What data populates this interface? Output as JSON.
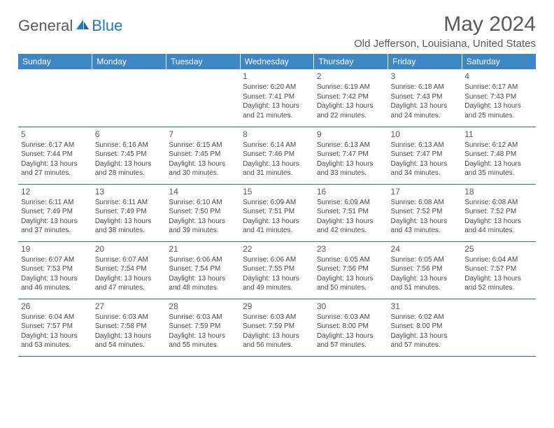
{
  "logo": {
    "part1": "General",
    "part2": "Blue"
  },
  "title": "May 2024",
  "location": "Old Jefferson, Louisiana, United States",
  "colors": {
    "header_bg": "#3d87c7",
    "header_text": "#ffffff",
    "cell_border": "#2f6ea3",
    "text": "#595959",
    "logo_gray": "#5a5a5a",
    "logo_blue": "#2678bf"
  },
  "day_headers": [
    "Sunday",
    "Monday",
    "Tuesday",
    "Wednesday",
    "Thursday",
    "Friday",
    "Saturday"
  ],
  "weeks": [
    [
      null,
      null,
      null,
      {
        "n": "1",
        "sr": "6:20 AM",
        "ss": "7:41 PM",
        "dl": "13 hours and 21 minutes."
      },
      {
        "n": "2",
        "sr": "6:19 AM",
        "ss": "7:42 PM",
        "dl": "13 hours and 22 minutes."
      },
      {
        "n": "3",
        "sr": "6:18 AM",
        "ss": "7:43 PM",
        "dl": "13 hours and 24 minutes."
      },
      {
        "n": "4",
        "sr": "6:17 AM",
        "ss": "7:43 PM",
        "dl": "13 hours and 25 minutes."
      }
    ],
    [
      {
        "n": "5",
        "sr": "6:17 AM",
        "ss": "7:44 PM",
        "dl": "13 hours and 27 minutes."
      },
      {
        "n": "6",
        "sr": "6:16 AM",
        "ss": "7:45 PM",
        "dl": "13 hours and 28 minutes."
      },
      {
        "n": "7",
        "sr": "6:15 AM",
        "ss": "7:45 PM",
        "dl": "13 hours and 30 minutes."
      },
      {
        "n": "8",
        "sr": "6:14 AM",
        "ss": "7:46 PM",
        "dl": "13 hours and 31 minutes."
      },
      {
        "n": "9",
        "sr": "6:13 AM",
        "ss": "7:47 PM",
        "dl": "13 hours and 33 minutes."
      },
      {
        "n": "10",
        "sr": "6:13 AM",
        "ss": "7:47 PM",
        "dl": "13 hours and 34 minutes."
      },
      {
        "n": "11",
        "sr": "6:12 AM",
        "ss": "7:48 PM",
        "dl": "13 hours and 35 minutes."
      }
    ],
    [
      {
        "n": "12",
        "sr": "6:11 AM",
        "ss": "7:49 PM",
        "dl": "13 hours and 37 minutes."
      },
      {
        "n": "13",
        "sr": "6:11 AM",
        "ss": "7:49 PM",
        "dl": "13 hours and 38 minutes."
      },
      {
        "n": "14",
        "sr": "6:10 AM",
        "ss": "7:50 PM",
        "dl": "13 hours and 39 minutes."
      },
      {
        "n": "15",
        "sr": "6:09 AM",
        "ss": "7:51 PM",
        "dl": "13 hours and 41 minutes."
      },
      {
        "n": "16",
        "sr": "6:09 AM",
        "ss": "7:51 PM",
        "dl": "13 hours and 42 minutes."
      },
      {
        "n": "17",
        "sr": "6:08 AM",
        "ss": "7:52 PM",
        "dl": "13 hours and 43 minutes."
      },
      {
        "n": "18",
        "sr": "6:08 AM",
        "ss": "7:52 PM",
        "dl": "13 hours and 44 minutes."
      }
    ],
    [
      {
        "n": "19",
        "sr": "6:07 AM",
        "ss": "7:53 PM",
        "dl": "13 hours and 46 minutes."
      },
      {
        "n": "20",
        "sr": "6:07 AM",
        "ss": "7:54 PM",
        "dl": "13 hours and 47 minutes."
      },
      {
        "n": "21",
        "sr": "6:06 AM",
        "ss": "7:54 PM",
        "dl": "13 hours and 48 minutes."
      },
      {
        "n": "22",
        "sr": "6:06 AM",
        "ss": "7:55 PM",
        "dl": "13 hours and 49 minutes."
      },
      {
        "n": "23",
        "sr": "6:05 AM",
        "ss": "7:56 PM",
        "dl": "13 hours and 50 minutes."
      },
      {
        "n": "24",
        "sr": "6:05 AM",
        "ss": "7:56 PM",
        "dl": "13 hours and 51 minutes."
      },
      {
        "n": "25",
        "sr": "6:04 AM",
        "ss": "7:57 PM",
        "dl": "13 hours and 52 minutes."
      }
    ],
    [
      {
        "n": "26",
        "sr": "6:04 AM",
        "ss": "7:57 PM",
        "dl": "13 hours and 53 minutes."
      },
      {
        "n": "27",
        "sr": "6:03 AM",
        "ss": "7:58 PM",
        "dl": "13 hours and 54 minutes."
      },
      {
        "n": "28",
        "sr": "6:03 AM",
        "ss": "7:59 PM",
        "dl": "13 hours and 55 minutes."
      },
      {
        "n": "29",
        "sr": "6:03 AM",
        "ss": "7:59 PM",
        "dl": "13 hours and 56 minutes."
      },
      {
        "n": "30",
        "sr": "6:03 AM",
        "ss": "8:00 PM",
        "dl": "13 hours and 57 minutes."
      },
      {
        "n": "31",
        "sr": "6:02 AM",
        "ss": "8:00 PM",
        "dl": "13 hours and 57 minutes."
      },
      null
    ]
  ],
  "labels": {
    "sunrise": "Sunrise:",
    "sunset": "Sunset:",
    "daylight": "Daylight:"
  }
}
